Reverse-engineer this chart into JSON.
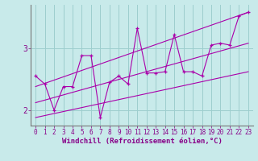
{
  "xlabel": "Windchill (Refroidissement éolien,°C)",
  "bg_color": "#c8eaea",
  "line_color": "#aa00aa",
  "grid_color": "#9dcece",
  "axis_color": "#777777",
  "xlim": [
    -0.5,
    23.5
  ],
  "ylim": [
    1.75,
    3.7
  ],
  "yticks": [
    2,
    3
  ],
  "xticks": [
    0,
    1,
    2,
    3,
    4,
    5,
    6,
    7,
    8,
    9,
    10,
    11,
    12,
    13,
    14,
    15,
    16,
    17,
    18,
    19,
    20,
    21,
    22,
    23
  ],
  "x_main": [
    0,
    1,
    2,
    3,
    4,
    5,
    6,
    7,
    8,
    9,
    10,
    11,
    12,
    13,
    14,
    15,
    16,
    17,
    18,
    19,
    20,
    21,
    22,
    23
  ],
  "y_main": [
    2.55,
    2.42,
    2.0,
    2.38,
    2.38,
    2.88,
    2.88,
    1.88,
    2.45,
    2.55,
    2.42,
    3.32,
    2.6,
    2.6,
    2.62,
    3.22,
    2.62,
    2.62,
    2.55,
    3.05,
    3.08,
    3.05,
    3.52,
    3.58
  ],
  "trend_lines": [
    [
      [
        0,
        2.38
      ],
      [
        23,
        3.58
      ]
    ],
    [
      [
        0,
        2.12
      ],
      [
        23,
        3.08
      ]
    ],
    [
      [
        0,
        1.88
      ],
      [
        23,
        2.62
      ]
    ]
  ]
}
